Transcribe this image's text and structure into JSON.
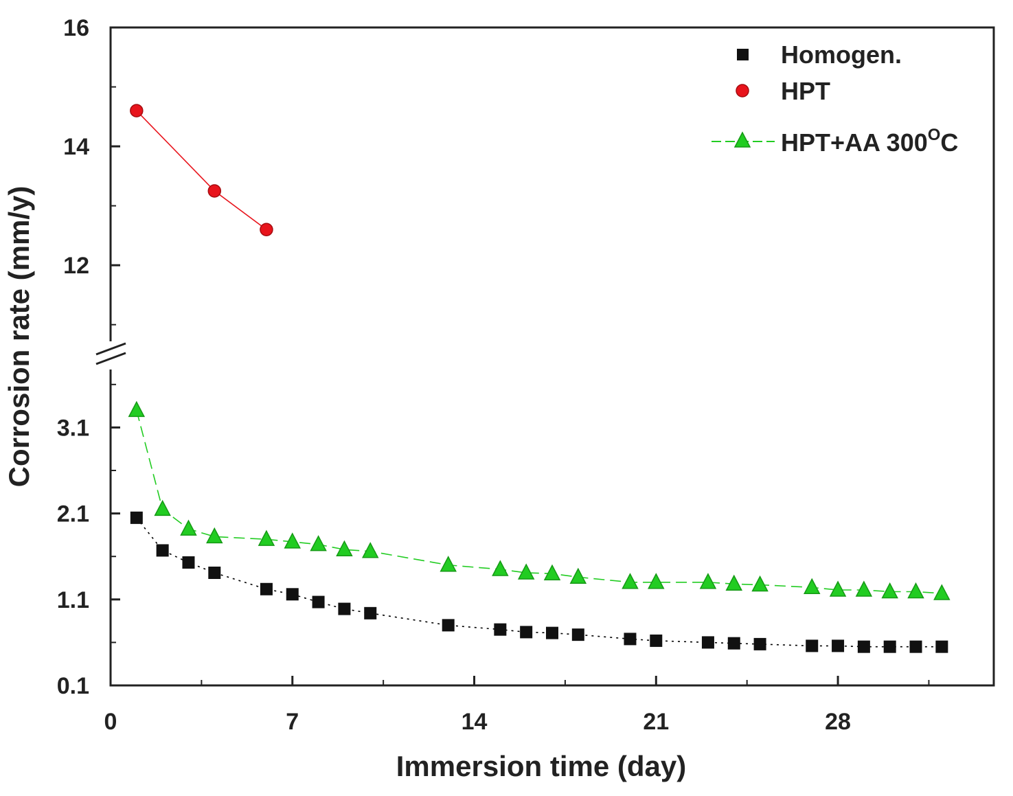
{
  "chart_data": {
    "type": "scatter",
    "title": "",
    "xlabel": "Immersion time (day)",
    "ylabel": "Corrosion rate (mm/y)",
    "xlim": [
      0,
      34
    ],
    "x_ticks": [
      0,
      7,
      14,
      21,
      28
    ],
    "y_axis_broken": true,
    "y_upper": {
      "range": [
        10.5,
        16
      ],
      "ticks": [
        12,
        14,
        16
      ]
    },
    "y_lower": {
      "range": [
        0.1,
        3.95
      ],
      "ticks": [
        0.1,
        1.1,
        2.1,
        3.1
      ]
    },
    "grid": false,
    "legend_position": "top-right",
    "series": [
      {
        "name": "Homogen.",
        "marker": "square",
        "color": "#000000",
        "line": "dotted",
        "x": [
          1,
          2,
          3,
          4,
          6,
          7,
          8,
          9,
          10,
          13,
          15,
          16,
          17,
          18,
          20,
          21,
          23,
          24,
          25,
          27,
          28,
          29,
          30,
          31,
          32
        ],
        "y": [
          2.05,
          1.67,
          1.53,
          1.41,
          1.22,
          1.16,
          1.07,
          0.99,
          0.94,
          0.8,
          0.75,
          0.72,
          0.71,
          0.69,
          0.64,
          0.62,
          0.6,
          0.59,
          0.58,
          0.56,
          0.56,
          0.55,
          0.55,
          0.55,
          0.55
        ]
      },
      {
        "name": "HPT",
        "marker": "circle",
        "color": "#e8141c",
        "line": "solid",
        "x": [
          1,
          4,
          6
        ],
        "y": [
          14.6,
          13.25,
          12.6
        ]
      },
      {
        "name": "HPT+AA 300",
        "name_superscript": "O",
        "name_suffix": "C",
        "marker": "triangle",
        "color": "#22cc22",
        "line": "dashed",
        "x": [
          1,
          2,
          3,
          4,
          6,
          7,
          8,
          9,
          10,
          13,
          15,
          16,
          17,
          18,
          20,
          21,
          23,
          24,
          25,
          27,
          28,
          29,
          30,
          31,
          32
        ],
        "y": [
          3.3,
          2.15,
          1.92,
          1.83,
          1.8,
          1.77,
          1.74,
          1.68,
          1.66,
          1.5,
          1.45,
          1.41,
          1.4,
          1.36,
          1.3,
          1.3,
          1.3,
          1.28,
          1.27,
          1.24,
          1.21,
          1.21,
          1.19,
          1.19,
          1.17
        ]
      }
    ]
  }
}
